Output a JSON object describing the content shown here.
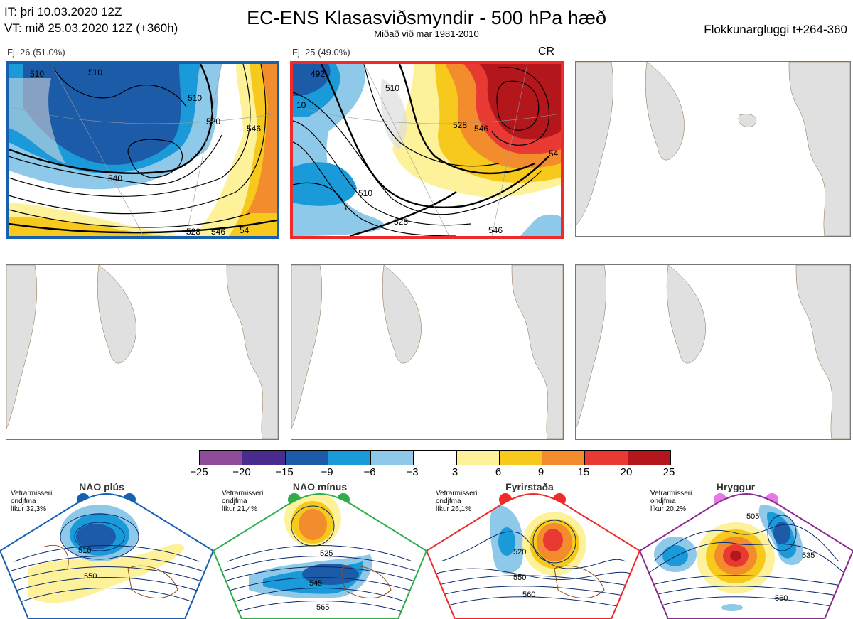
{
  "header": {
    "it_line": "IT: þri 10.03.2020 12Z",
    "vt_line": "VT: mið 25.03.2020 12Z  (+360h)",
    "title": "EC-ENS Klasasviðsmyndir - 500 hPa hæð",
    "subtitle": "Miðað við mar 1981-2010",
    "window": "Flokkunargluggi t+264-360"
  },
  "clusters": [
    {
      "label": "Fj. 26 (51.0%)",
      "frame_color": "#1760ad",
      "contours": [
        "510",
        "510",
        "520",
        "540",
        "546",
        "510",
        "528",
        "546",
        "54"
      ]
    },
    {
      "label": "Fj. 25 (49.0%)",
      "frame_color": "#ee2a2a",
      "tag": "CR",
      "contours": [
        "492",
        "10",
        "510",
        "528",
        "546",
        "510",
        "528",
        "546",
        "54"
      ]
    }
  ],
  "colorbar": {
    "colors": [
      "#8e4b9a",
      "#4a2c8f",
      "#1b5ba8",
      "#1a9ad8",
      "#8ec9ea",
      "#ffffff",
      "#fdf29a",
      "#f7c91d",
      "#f28c2d",
      "#e83a32",
      "#b3161b"
    ],
    "ticks": [
      "−25",
      "−20",
      "−15",
      "−9",
      "−6",
      "−3",
      "3",
      "6",
      "9",
      "15",
      "20",
      "25"
    ]
  },
  "regimes": [
    {
      "name": "NAO plús",
      "note": [
        "Vetrarmisseri",
        "ondjfma",
        "líkur 32,3%"
      ],
      "color": "#1760ad",
      "contours": [
        "510",
        "550"
      ]
    },
    {
      "name": "NAO mínus",
      "note": [
        "Vetrarmisseri",
        "ondjfma",
        "líkur 21,4%"
      ],
      "color": "#2fad4a",
      "contours": [
        "525",
        "545",
        "565"
      ]
    },
    {
      "name": "Fyrirstaða",
      "note": [
        "Vetrarmisseri",
        "ondjfma",
        "líkur 26,1%"
      ],
      "color": "#ee2a2a",
      "contours": [
        "520",
        "550",
        "560"
      ]
    },
    {
      "name": "Hryggur",
      "note": [
        "Vetrarmisseri",
        "ondjfma",
        "líkur 20,2%"
      ],
      "color": "#8a2c8f",
      "contours": [
        "505",
        "535",
        "560"
      ]
    }
  ]
}
